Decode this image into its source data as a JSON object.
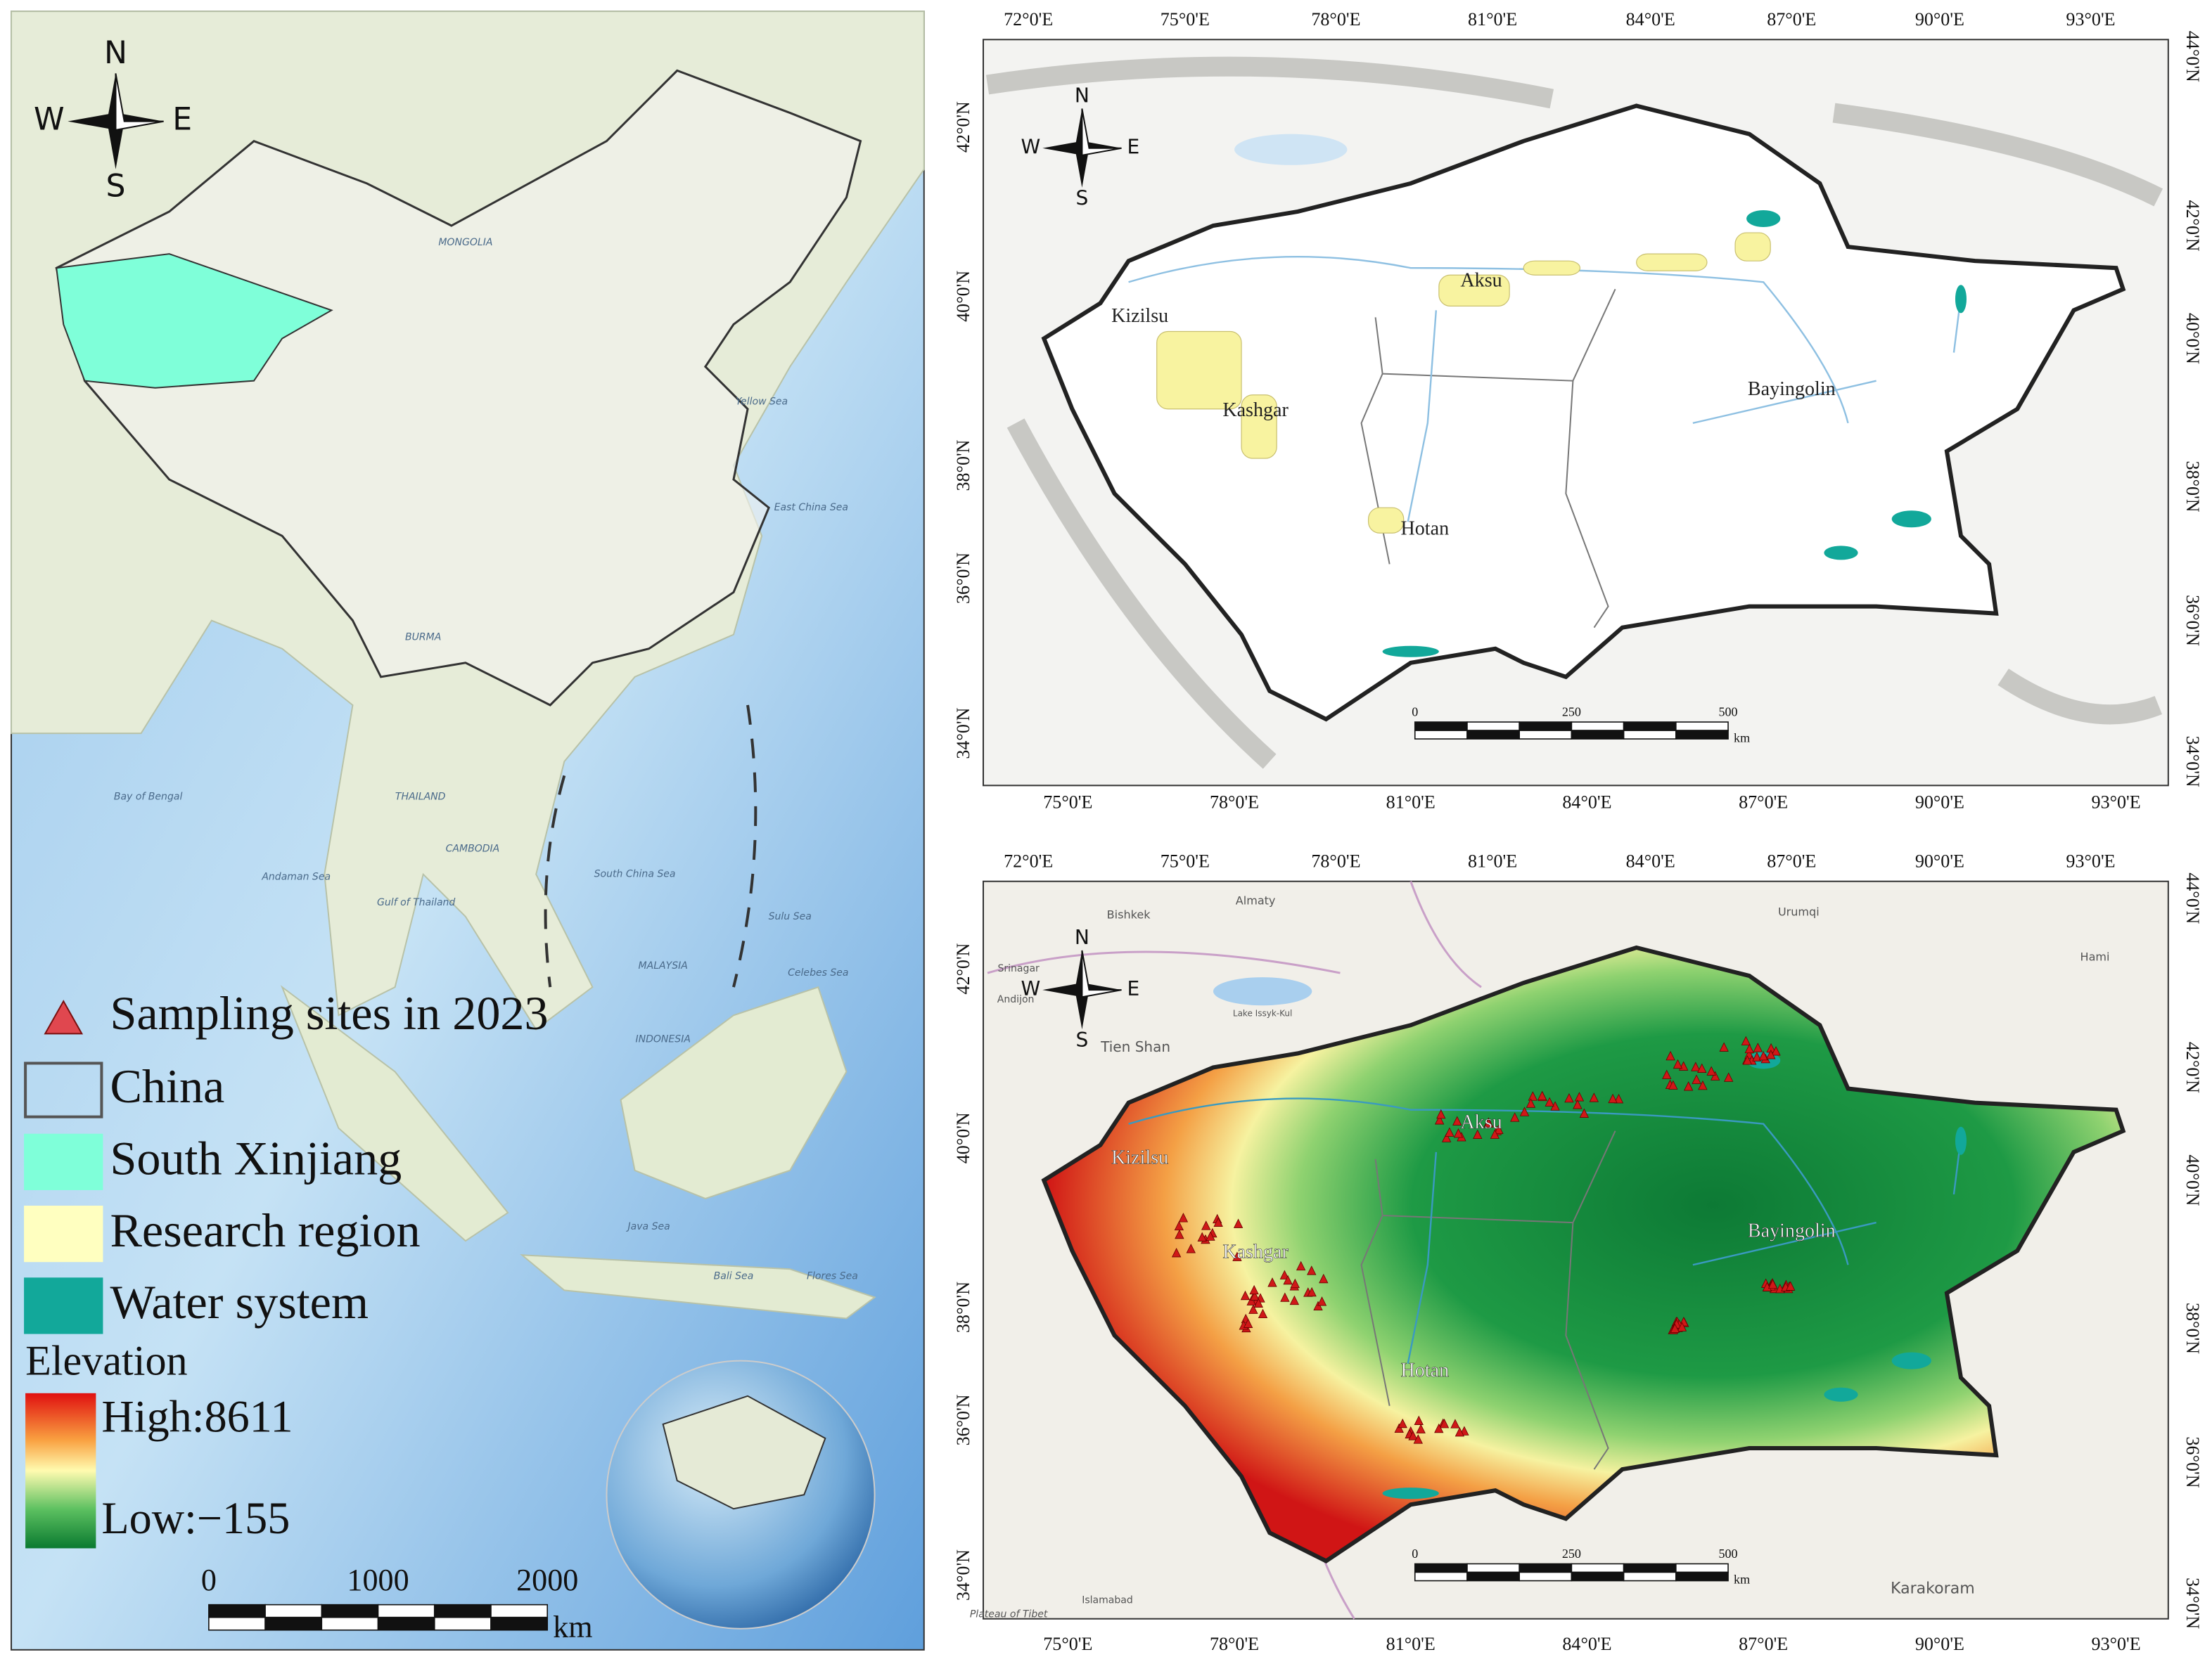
{
  "overview_map": {
    "compass": {
      "n": "N",
      "s": "S",
      "w": "W",
      "e": "E"
    },
    "basemap_labels": [
      "Bay of Bengal",
      "Andaman Sea",
      "Gulf of Thailand",
      "South China Sea",
      "Java Sea",
      "Yellow Sea",
      "East China Sea",
      "Sulu Sea",
      "Celebes Sea",
      "Bali Sea",
      "Flores Sea",
      "BURMA",
      "THAILAND",
      "CAMBODIA",
      "MALAYSIA",
      "INDONESIA",
      "MONGOLIA"
    ],
    "legend": {
      "items": [
        "Sampling sites in 2023",
        "China",
        "South Xinjiang",
        "Research region",
        "Water system"
      ],
      "elevation_title": "Elevation",
      "high": "High:8611",
      "low": "Low:−155"
    },
    "scale": {
      "labels": [
        "0",
        "1000",
        "2000"
      ],
      "unit": "km"
    }
  },
  "graticule": {
    "top_lon": [
      "72°0'E",
      "75°0'E",
      "78°0'E",
      "81°0'E",
      "84°0'E",
      "87°0'E",
      "90°0'E",
      "93°0'E"
    ],
    "bottom_lon": [
      "75°0'E",
      "78°0'E",
      "81°0'E",
      "84°0'E",
      "87°0'E",
      "90°0'E",
      "93°0'E"
    ],
    "left_lat": [
      "42°0'N",
      "40°0'N",
      "38°0'N",
      "36°0'N",
      "34°0'N"
    ],
    "right_lat": [
      "44°0'N",
      "42°0'N",
      "40°0'N",
      "38°0'N",
      "36°0'N",
      "34°0'N"
    ]
  },
  "region_labels": [
    "Kizilsu",
    "Kashgar",
    "Aksu",
    "Hotan",
    "Bayingolin"
  ],
  "inset_compass": {
    "n": "N",
    "s": "S",
    "w": "W",
    "e": "E"
  },
  "inset_scale": {
    "labels": [
      "0",
      "250",
      "500"
    ],
    "unit": "km"
  },
  "elevation_map_places": [
    "Bishkek",
    "Almaty",
    "Urumqi",
    "Hami",
    "Tien Shan",
    "Lake Issyk-Kul",
    "Andijon",
    "Srinagar",
    "Islamabad",
    "Plateau of Tibet",
    "Karakoram"
  ]
}
